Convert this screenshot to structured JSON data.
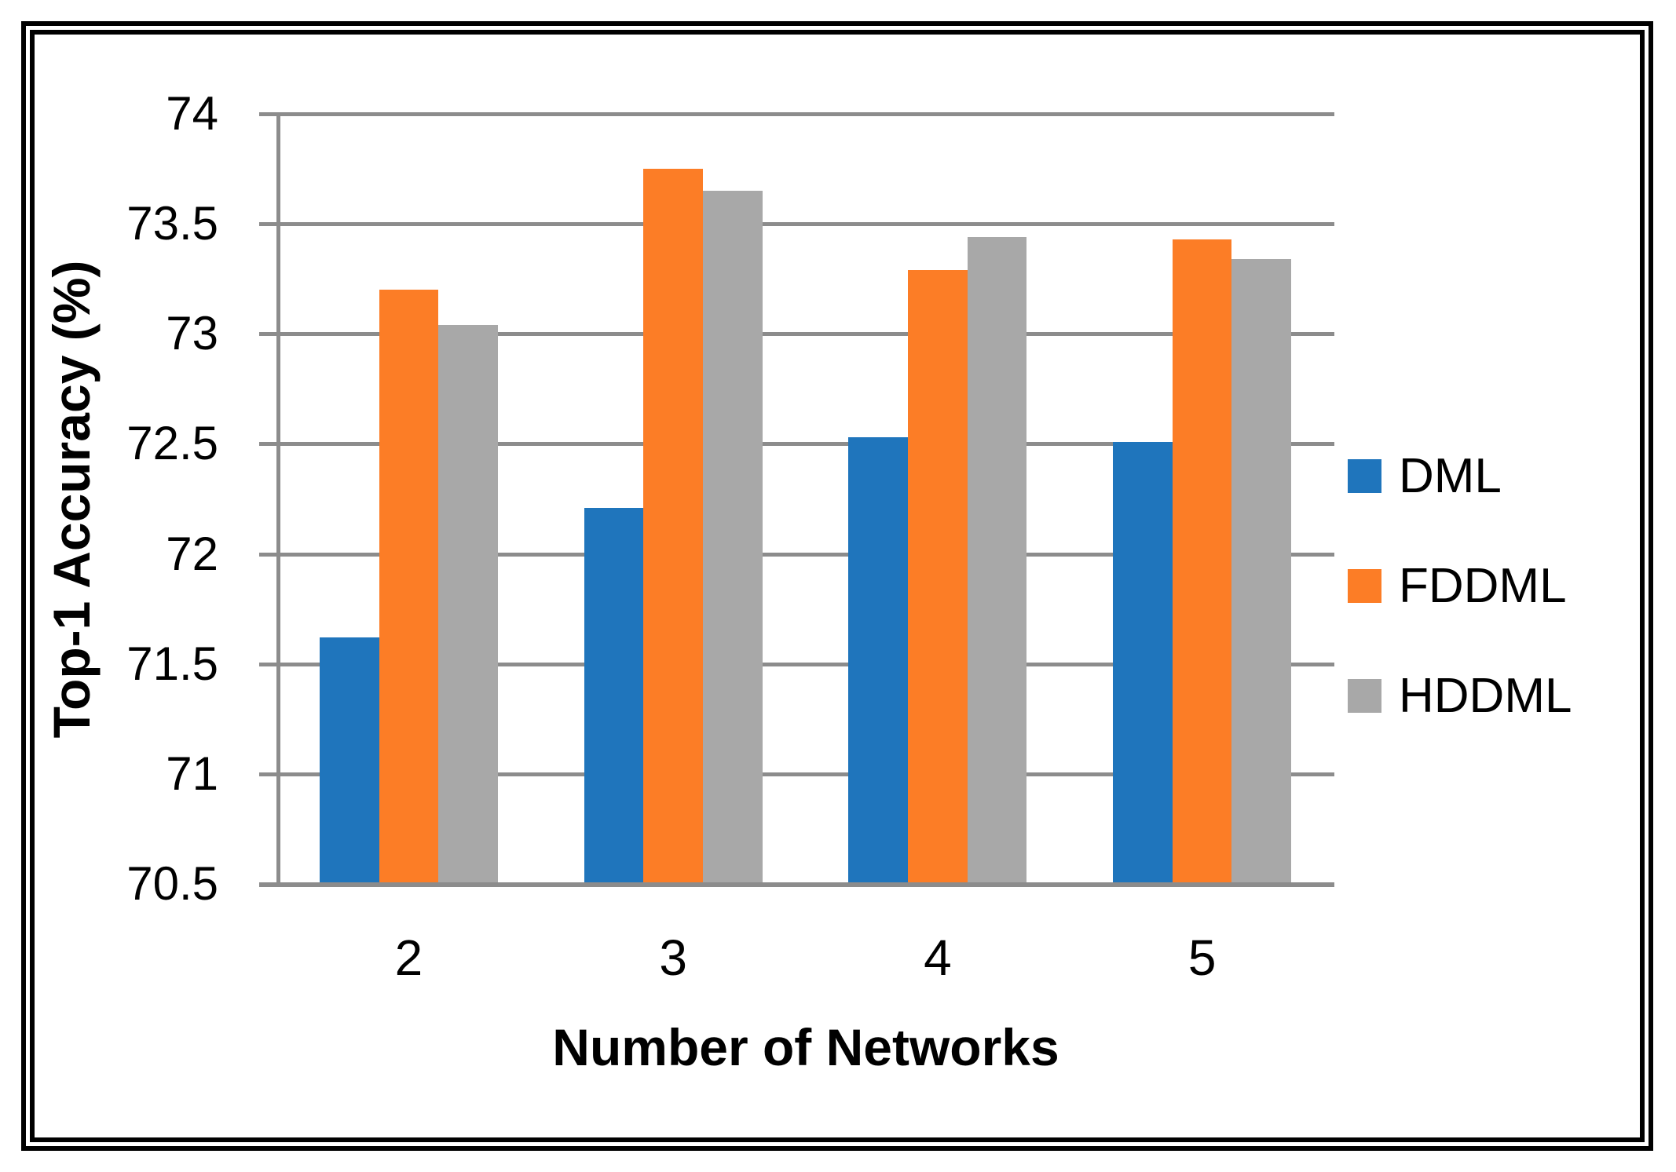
{
  "figure": {
    "background": "#FFFFFF",
    "border_color": "#000000"
  },
  "chart_data": {
    "type": "bar",
    "title": "",
    "categories": [
      "2",
      "3",
      "4",
      "5"
    ],
    "series": [
      {
        "name": "DML",
        "color": "#1F75BC",
        "values": [
          71.62,
          72.21,
          72.53,
          72.51
        ]
      },
      {
        "name": "FDDML",
        "color": "#FC7D26",
        "values": [
          73.2,
          73.75,
          73.29,
          73.43
        ]
      },
      {
        "name": "HDDML",
        "color": "#A8A8A8",
        "values": [
          73.04,
          73.65,
          73.44,
          73.34
        ]
      }
    ],
    "xlabel": "Number of Networks",
    "ylabel": "Top-1 Accuracy (%)",
    "ylim": [
      70.5,
      74
    ],
    "yticks": [
      "74",
      "73.5",
      "73",
      "72.5",
      "72",
      "71.5",
      "71",
      "70.5"
    ],
    "ytick_values": [
      74,
      73.5,
      73,
      72.5,
      72,
      71.5,
      71,
      70.5
    ],
    "grid": true,
    "legend_position": "right",
    "axis_color": "#8C8C8C"
  }
}
